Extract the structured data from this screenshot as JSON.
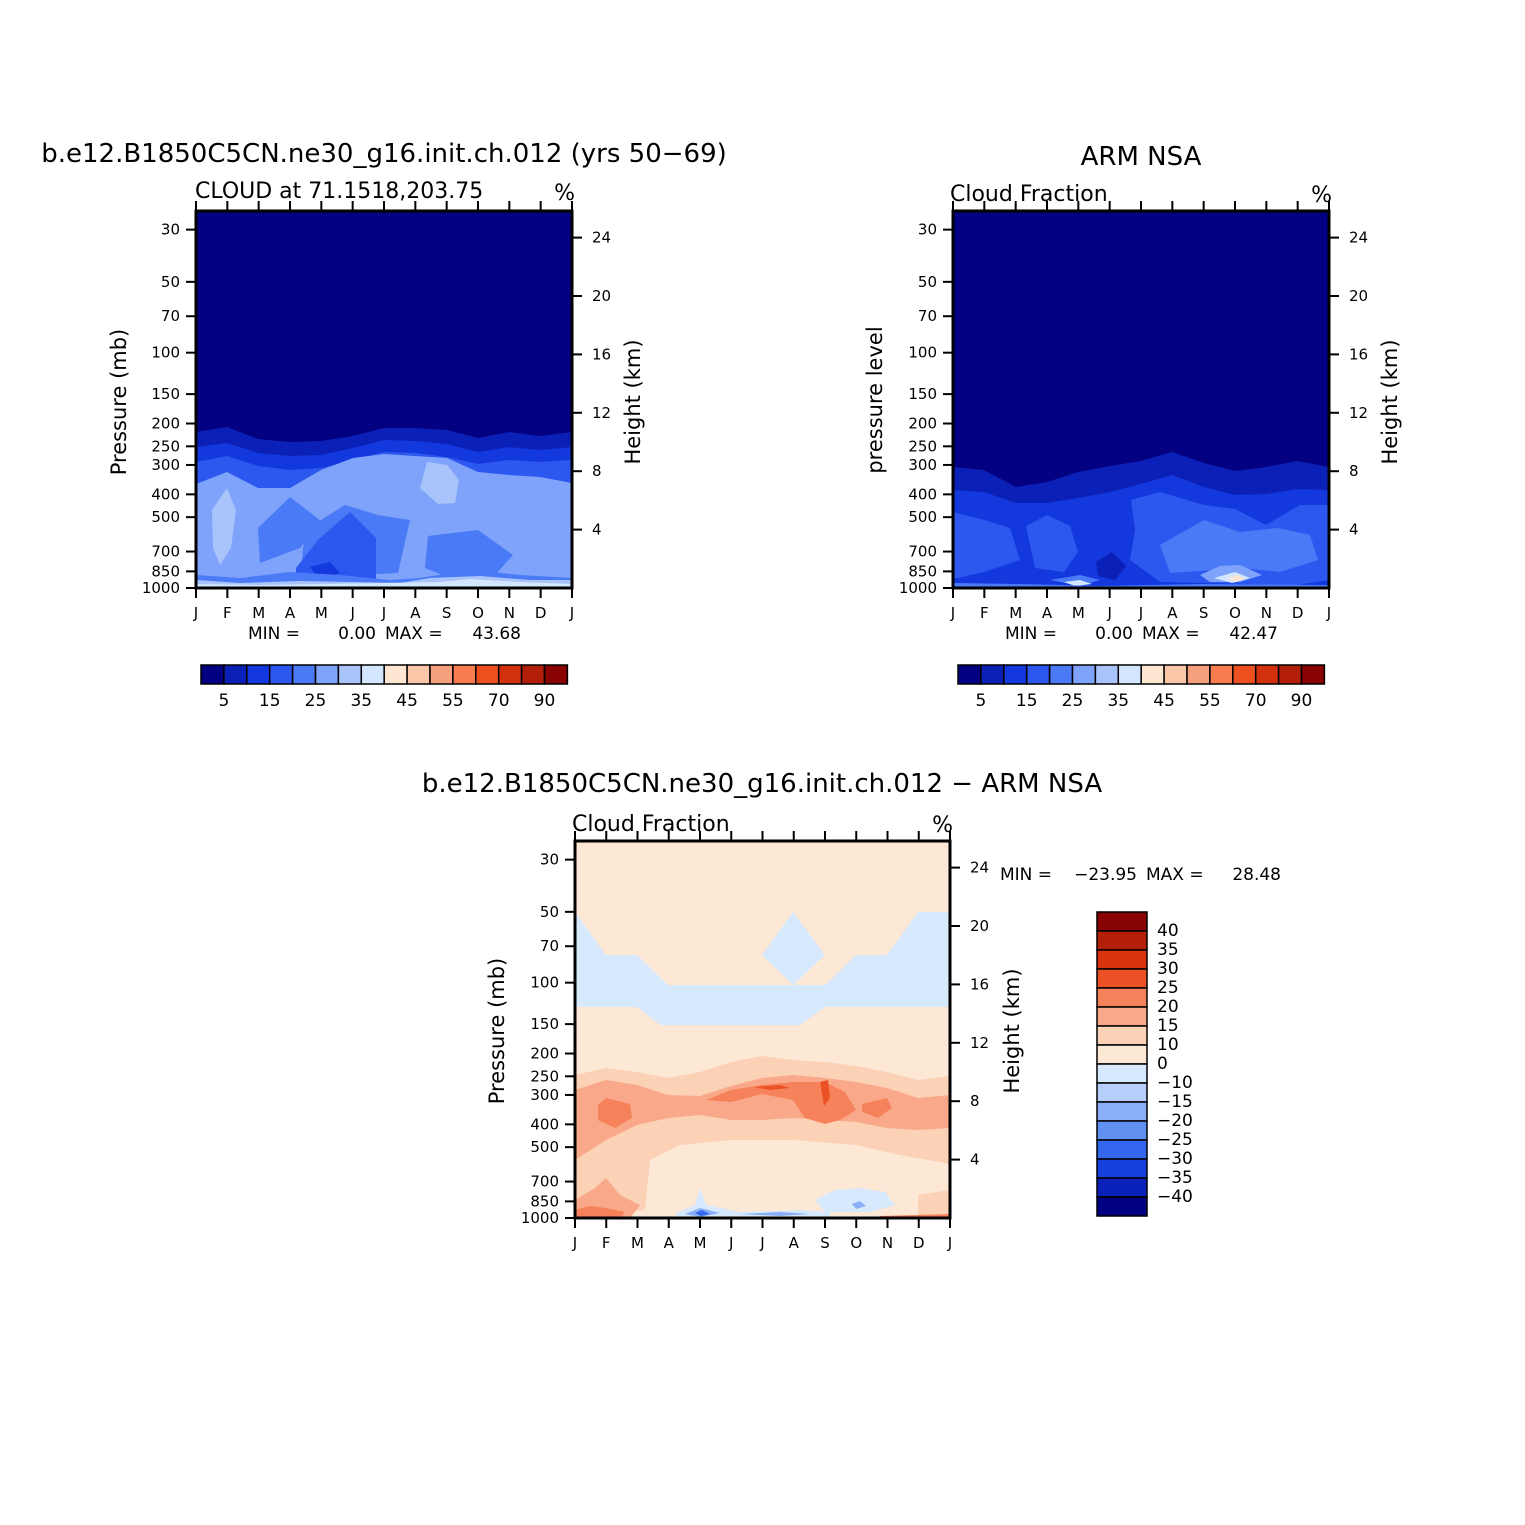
{
  "chart_data": [
    {
      "type": "heatmap",
      "title": "b.e12.B1850C5CN.ne30_g16.init.ch.012 (yrs 50−69)",
      "subtitle": "CLOUD at 71.1518,203.75",
      "units": "%",
      "ylabel": "Pressure (mb)",
      "ylabel_right": "Height (km)",
      "x_ticks": [
        "J",
        "F",
        "M",
        "A",
        "M",
        "J",
        "J",
        "A",
        "S",
        "O",
        "N",
        "D",
        "J"
      ],
      "y_ticks": [
        "30",
        "50",
        "70",
        "100",
        "150",
        "200",
        "250",
        "300",
        "400",
        "500",
        "700",
        "850",
        "1000"
      ],
      "y_right_ticks": [
        "24",
        "20",
        "16",
        "12",
        "8",
        "4"
      ],
      "min_label": "MIN =",
      "min_value": "0.00",
      "max_label": "MAX =",
      "max_value": "43.68",
      "levels": [
        5,
        10,
        15,
        20,
        25,
        30,
        35,
        40,
        45,
        50,
        55,
        60,
        70,
        80,
        90
      ],
      "colorbar_labels": [
        "5",
        "15",
        "25",
        "35",
        "45",
        "55",
        "70",
        "90"
      ],
      "colors": [
        "#030081",
        "#0b20b6",
        "#1338dd",
        "#2c58ef",
        "#4a7af6",
        "#7fa3fa",
        "#a9c3fb",
        "#d4e6fd",
        "#fde6d2",
        "#fcc7a8",
        "#f6a07e",
        "#f77c4f",
        "#ec501f",
        "#d3310d",
        "#b31e09",
        "#8a0303"
      ]
    },
    {
      "type": "heatmap",
      "title": "ARM NSA",
      "subtitle": "Cloud Fraction",
      "units": "%",
      "ylabel": "pressure level",
      "ylabel_right": "Height (km)",
      "x_ticks": [
        "J",
        "F",
        "M",
        "A",
        "M",
        "J",
        "J",
        "A",
        "S",
        "O",
        "N",
        "D",
        "J"
      ],
      "y_ticks": [
        "30",
        "50",
        "70",
        "100",
        "150",
        "200",
        "250",
        "300",
        "400",
        "500",
        "700",
        "850",
        "1000"
      ],
      "y_right_ticks": [
        "24",
        "20",
        "16",
        "12",
        "8",
        "4"
      ],
      "min_label": "MIN =",
      "min_value": "0.00",
      "max_label": "MAX =",
      "max_value": "42.47",
      "levels": [
        5,
        10,
        15,
        20,
        25,
        30,
        35,
        40,
        45,
        50,
        55,
        60,
        70,
        80,
        90
      ],
      "colorbar_labels": [
        "5",
        "15",
        "25",
        "35",
        "45",
        "55",
        "70",
        "90"
      ],
      "colors": [
        "#030081",
        "#0b20b6",
        "#1338dd",
        "#2c58ef",
        "#4a7af6",
        "#7fa3fa",
        "#a9c3fb",
        "#d4e6fd",
        "#fde6d2",
        "#fcc7a8",
        "#f6a07e",
        "#f77c4f",
        "#ec501f",
        "#d3310d",
        "#b31e09",
        "#8a0303"
      ]
    },
    {
      "type": "heatmap",
      "title": "b.e12.B1850C5CN.ne30_g16.init.ch.012 − ARM NSA",
      "subtitle": "Cloud Fraction",
      "units": "%",
      "ylabel": "Pressure (mb)",
      "ylabel_right": "Height (km)",
      "x_ticks": [
        "J",
        "F",
        "M",
        "A",
        "M",
        "J",
        "J",
        "A",
        "S",
        "O",
        "N",
        "D",
        "J"
      ],
      "y_ticks": [
        "30",
        "50",
        "70",
        "100",
        "150",
        "200",
        "250",
        "300",
        "400",
        "500",
        "700",
        "850",
        "1000"
      ],
      "y_right_ticks": [
        "24",
        "20",
        "16",
        "12",
        "8",
        "4"
      ],
      "min_label": "MIN =",
      "min_value": "−23.95",
      "max_label": "MAX =",
      "max_value": "28.48",
      "levels": [
        -40,
        -35,
        -30,
        -25,
        -20,
        -15,
        -10,
        0,
        10,
        15,
        20,
        25,
        30,
        35,
        40
      ],
      "colorbar_labels": [
        "40",
        "35",
        "30",
        "25",
        "20",
        "15",
        "10",
        "0",
        "−10",
        "−15",
        "−20",
        "−25",
        "−30",
        "−35",
        "−40"
      ],
      "colors": [
        "#020082",
        "#0b22ba",
        "#1640de",
        "#3367ed",
        "#6190f3",
        "#8aaef8",
        "#b5cefb",
        "#d7e9fd",
        "#fde8d6",
        "#fcd2b6",
        "#f9a889",
        "#f6825b",
        "#ec5125",
        "#d8330c",
        "#b31f09",
        "#880303"
      ]
    }
  ]
}
